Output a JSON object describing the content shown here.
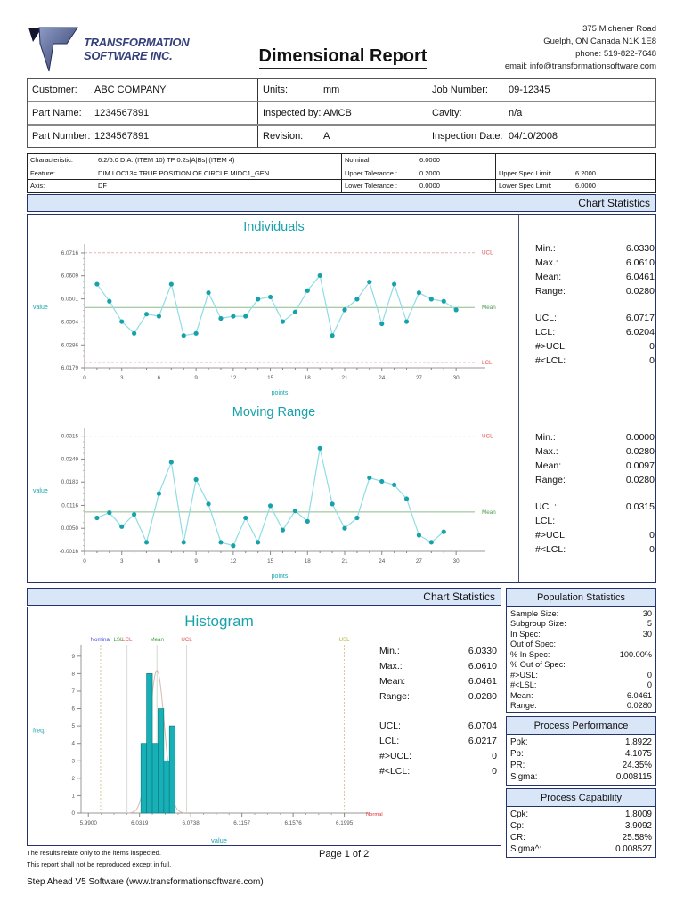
{
  "colors": {
    "teal": "#17a2ab",
    "series_line": "#8fdde2",
    "series_point": "#17a2ab",
    "bar_fill": "#16b0b6",
    "bar_stroke": "#0e7d84",
    "mean_green": "#8cba8c",
    "mean_label_green": "#4e9a4e",
    "limit_red": "#e05555",
    "limit_line_pink": "#e8b4b4",
    "axis_gray": "#999999",
    "tick_text": "#555555",
    "band_bg": "#d9e6f7",
    "band_border": "#24346b",
    "nominal_blue": "#4a4ae0",
    "spec_green": "#3aa03a",
    "usl_olive": "#b0b030",
    "curve_pink": "#d8b8b0",
    "ref_gray": "#d0d0d0",
    "ref_tan": "#d4b888"
  },
  "header": {
    "logo_line1": "TRANSFORMATION",
    "logo_line2": "SOFTWARE INC.",
    "title": "Dimensional Report",
    "address_lines": [
      "375 Michener Road",
      "Guelph, ON  Canada  N1K 1E8",
      "phone: 519-822-7648",
      "email: info@transformationsoftware.com"
    ]
  },
  "info_table": {
    "rows": [
      [
        {
          "label": "Customer:",
          "value": "ABC COMPANY"
        },
        {
          "label": "Units:",
          "value": "mm"
        },
        {
          "label": "Job Number:",
          "value": "09-12345"
        }
      ],
      [
        {
          "label": "Part Name:",
          "value": "1234567891"
        },
        {
          "label": "Inspected by:",
          "value": "AMCB"
        },
        {
          "label": "Cavity:",
          "value": "n/a"
        }
      ],
      [
        {
          "label": "Part Number:",
          "value": "1234567891"
        },
        {
          "label": "Revision:",
          "value": "A"
        },
        {
          "label": "Inspection Date:",
          "value": "04/10/2008"
        }
      ]
    ]
  },
  "characteristic_table": {
    "rows": [
      [
        {
          "label": "Characteristic:",
          "value": "6.2/6.0 DIA. (ITEM 10) TP 0.2s|A|Bs| (ITEM 4)"
        },
        {
          "label": "Nominal:",
          "value": "6.0000"
        },
        {
          "label": "",
          "value": ""
        }
      ],
      [
        {
          "label": "Feature:",
          "value": "DIM LOC13= TRUE POSITION OF CIRCLE MIDC1_GEN"
        },
        {
          "label": "Upper Tolerance :",
          "value": "0.2000"
        },
        {
          "label": "Upper Spec Limit:",
          "value": "6.2000"
        }
      ],
      [
        {
          "label": "Axis:",
          "value": "DF"
        },
        {
          "label": "Lower Tolerance :",
          "value": "0.0000"
        },
        {
          "label": "Lower Spec Limit:",
          "value": "6.0000"
        }
      ]
    ]
  },
  "sections": {
    "control_charts": {
      "header": "Chart Statistics",
      "individuals_stats": {
        "rows": [
          {
            "label": "Min.:",
            "value": "6.0330"
          },
          {
            "label": "Max.:",
            "value": "6.0610"
          },
          {
            "label": "Mean:",
            "value": "6.0461"
          },
          {
            "label": "Range:",
            "value": "0.0280"
          },
          {
            "label": "UCL:",
            "value": "6.0717",
            "gap": true
          },
          {
            "label": "LCL:",
            "value": "6.0204"
          },
          {
            "label": "#>UCL:",
            "value": "0"
          },
          {
            "label": "#<LCL:",
            "value": "0"
          }
        ]
      },
      "moving_range_stats": {
        "rows": [
          {
            "label": "Min.:",
            "value": "0.0000"
          },
          {
            "label": "Max.:",
            "value": "0.0280"
          },
          {
            "label": "Mean:",
            "value": "0.0097"
          },
          {
            "label": "Range:",
            "value": "0.0280"
          },
          {
            "label": "UCL:",
            "value": "0.0315",
            "gap": true
          },
          {
            "label": "LCL:",
            "value": ""
          },
          {
            "label": "#>UCL:",
            "value": "0"
          },
          {
            "label": "#<LCL:",
            "value": "0"
          }
        ]
      }
    },
    "histogram": {
      "header": "Chart Statistics",
      "stats": {
        "rows": [
          {
            "label": "Min.:",
            "value": "6.0330"
          },
          {
            "label": "Max.:",
            "value": "6.0610"
          },
          {
            "label": "Mean:",
            "value": "6.0461"
          },
          {
            "label": "Range:",
            "value": "0.0280"
          },
          {
            "label": "UCL:",
            "value": "6.0704",
            "gap": true
          },
          {
            "label": "LCL:",
            "value": "6.0217"
          },
          {
            "label": "#>UCL:",
            "value": "0"
          },
          {
            "label": "#<LCL:",
            "value": "0"
          }
        ]
      }
    },
    "population": {
      "header": "Population Statistics",
      "rows": [
        {
          "label": "Sample Size:",
          "value": "30"
        },
        {
          "label": "Subgroup Size:",
          "value": "5"
        },
        {
          "label": "In Spec:",
          "value": "30"
        },
        {
          "label": "Out of Spec:",
          "value": ""
        },
        {
          "label": "% In Spec:",
          "value": "100.00%"
        },
        {
          "label": "% Out of Spec:",
          "value": ""
        },
        {
          "label": "#>USL:",
          "value": "0"
        },
        {
          "label": "#<LSL:",
          "value": "0"
        },
        {
          "label": "Mean:",
          "value": "6.0461"
        },
        {
          "label": "Range:",
          "value": "0.0280"
        }
      ]
    },
    "performance": {
      "header": "Process Performance",
      "rows": [
        {
          "label": "Ppk:",
          "value": "1.8922"
        },
        {
          "label": "Pp:",
          "value": "4.1075"
        },
        {
          "label": "PR:",
          "value": "24.35%"
        },
        {
          "label": "Sigma:",
          "value": "0.008115"
        }
      ]
    },
    "capability": {
      "header": "Process Capability",
      "rows": [
        {
          "label": "Cpk:",
          "value": "1.8009"
        },
        {
          "label": "Cp:",
          "value": "3.9092"
        },
        {
          "label": "CR:",
          "value": "25.58%"
        },
        {
          "label": "Sigma^:",
          "value": "0.008527"
        }
      ]
    }
  },
  "chart_data": [
    {
      "type": "line",
      "name": "individuals",
      "title": "Individuals",
      "xlabel": "points",
      "ylabel": "value",
      "xlim": [
        0,
        31.5
      ],
      "ylim": [
        6.0179,
        6.0745
      ],
      "x_tick_major": 3,
      "x_tick_max": 30,
      "y_ticks": [
        6.0716,
        6.0609,
        6.0501,
        6.0394,
        6.0286,
        6.0179
      ],
      "y_decimals": 4,
      "ucl": 6.0717,
      "lcl": 6.0204,
      "mean": 6.0461,
      "ucl_label": "UCL",
      "lcl_label": "LCL",
      "mean_label": "Mean",
      "x_start": 1,
      "values": [
        6.057,
        6.049,
        6.0395,
        6.034,
        6.043,
        6.042,
        6.057,
        6.033,
        6.034,
        6.053,
        6.041,
        6.042,
        6.042,
        6.05,
        6.051,
        6.0395,
        6.044,
        6.054,
        6.061,
        6.033,
        6.045,
        6.05,
        6.058,
        6.0385,
        6.057,
        6.0395,
        6.053,
        6.05,
        6.049,
        6.045
      ]
    },
    {
      "type": "line",
      "name": "moving-range",
      "title": "Moving Range",
      "xlabel": "points",
      "ylabel": "value",
      "xlim": [
        0,
        31.5
      ],
      "ylim": [
        -0.0016,
        0.0332
      ],
      "x_tick_major": 3,
      "x_tick_max": 30,
      "y_ticks": [
        0.0315,
        0.0249,
        0.0183,
        0.0116,
        0.005,
        -0.0016
      ],
      "y_decimals": 4,
      "ucl": 0.0315,
      "lcl": null,
      "mean": 0.0097,
      "ucl_label": "UCL",
      "lcl_label": "LCL",
      "mean_label": "Mean",
      "x_start": 1,
      "values": [
        0.008,
        0.0095,
        0.0055,
        0.009,
        0.001,
        0.015,
        0.024,
        0.001,
        0.019,
        0.012,
        0.001,
        0.0,
        0.008,
        0.001,
        0.0115,
        0.0045,
        0.01,
        0.007,
        0.028,
        0.012,
        0.005,
        0.008,
        0.0195,
        0.0185,
        0.0175,
        0.0135,
        0.003,
        0.001,
        0.004
      ]
    },
    {
      "type": "histogram",
      "name": "histogram",
      "title": "Histogram",
      "xlabel": "value",
      "ylabel": "freq.",
      "xlim": [
        5.984,
        6.21
      ],
      "ylim": [
        0,
        9.45
      ],
      "x_ticks": [
        5.99,
        6.0319,
        6.0738,
        6.1157,
        6.1576,
        6.1995
      ],
      "x_decimals": 4,
      "y_ticks": [
        0,
        1,
        2,
        3,
        4,
        5,
        6,
        7,
        8,
        9
      ],
      "bin_start": 6.033,
      "bin_width": 0.00467,
      "frequencies": [
        4,
        8,
        4,
        6,
        3,
        5
      ],
      "ref_lines": [
        {
          "label": "Nominal",
          "value": 6.0,
          "label_color": "#4a4ae0",
          "line": "dashed-tan",
          "dx": 0
        },
        {
          "label": "LSL",
          "value": 6.0,
          "label_color": "#3aa03a",
          "line": "none",
          "dx": 20
        },
        {
          "label": "LCL",
          "value": 6.0217,
          "label_color": "#e05555",
          "line": "solid",
          "dx": 0
        },
        {
          "label": "Mean",
          "value": 6.0461,
          "label_color": "#3aa03a",
          "line": "solid-green",
          "dx": 0
        },
        {
          "label": "UCL",
          "value": 6.0704,
          "label_color": "#e05555",
          "line": "solid",
          "dx": 0
        },
        {
          "label": "USL",
          "value": 6.1995,
          "label_color": "#b0b030",
          "line": "dashed-tan",
          "dx": 0
        }
      ],
      "curve": {
        "mean": 6.0461,
        "sigma": 0.0062,
        "peak": 8.2
      },
      "normal_label": "Normal"
    }
  ],
  "footer": {
    "line1": "The results relate only to the items inspected.",
    "line2": "This report shall not be reproduced except in full.",
    "page": "Page 1 of 2",
    "software": "Step Ahead V5 Software (www.transformationsoftware.com)"
  }
}
